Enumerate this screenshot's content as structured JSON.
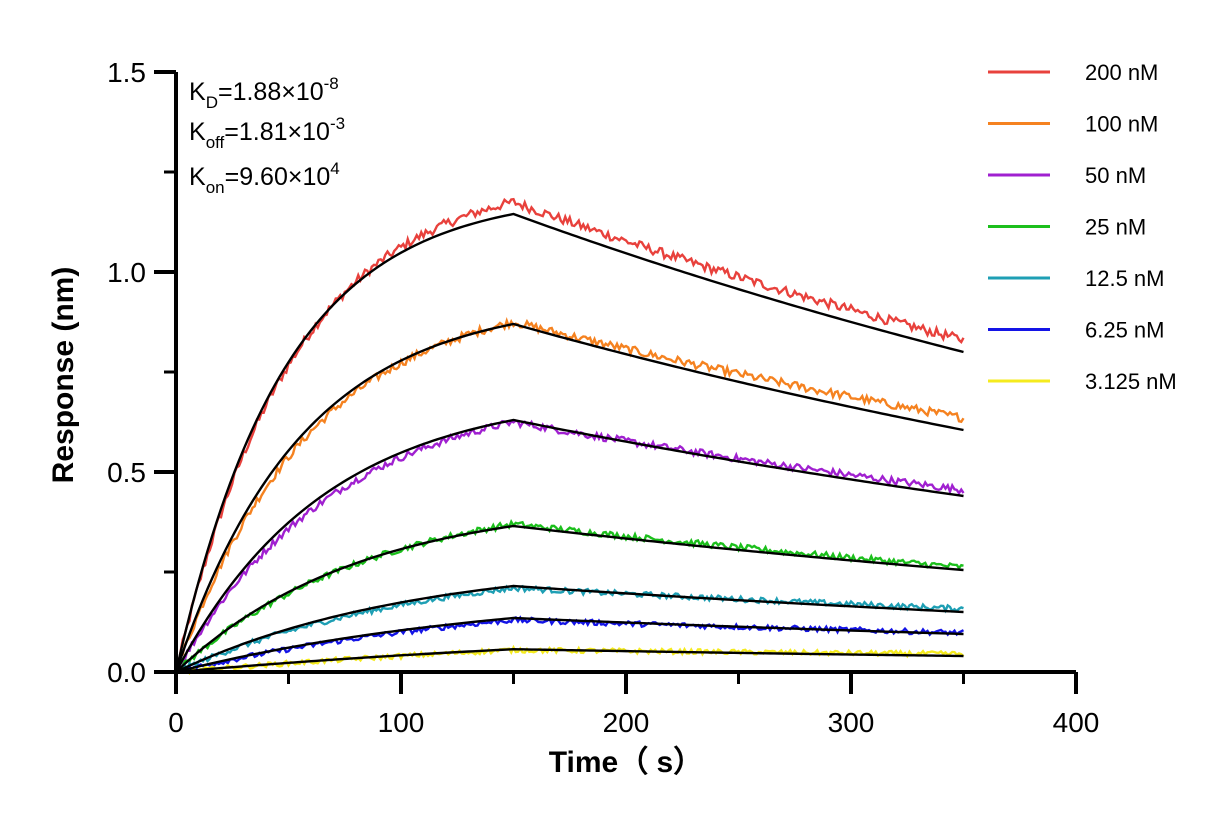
{
  "chart_data": {
    "type": "line",
    "xlabel": "Time（ s）",
    "ylabel": "Response (nm)",
    "xlim": [
      0,
      400
    ],
    "ylim": [
      0,
      1.5
    ],
    "x_ticks": [
      "0",
      "100",
      "200",
      "300",
      "400"
    ],
    "y_ticks": [
      "0.0",
      "0.5",
      "1.0",
      "1.5"
    ],
    "grid": false,
    "legend_position": "top-right",
    "kinetics": {
      "kd": {
        "base": "K",
        "sub": "D",
        "mid": "=1.88×10",
        "sup": "-8"
      },
      "koff": {
        "base": "K",
        "sub": "off",
        "mid": "=1.81×10",
        "sup": "-3"
      },
      "kon": {
        "base": "K",
        "sub": "on",
        "mid": "=9.60×10",
        "sup": "4"
      }
    },
    "association_end": 150,
    "dissociation_end": 350,
    "series": [
      {
        "name": "200 nM",
        "color": "#e8413c",
        "fit_peak": 1.145,
        "fit_end": 0.8,
        "data_peak": 1.175,
        "data_end": 0.83
      },
      {
        "name": "100 nM",
        "color": "#f58220",
        "fit_peak": 0.87,
        "fit_end": 0.605,
        "data_peak": 0.875,
        "data_end": 0.635
      },
      {
        "name": "50 nM",
        "color": "#a020d0",
        "fit_peak": 0.63,
        "fit_end": 0.44,
        "data_peak": 0.625,
        "data_end": 0.455
      },
      {
        "name": "25 nM",
        "color": "#1cbf1c",
        "fit_peak": 0.365,
        "fit_end": 0.255,
        "data_peak": 0.37,
        "data_end": 0.262
      },
      {
        "name": "12.5 nM",
        "color": "#1e9fb4",
        "fit_peak": 0.215,
        "fit_end": 0.15,
        "data_peak": 0.21,
        "data_end": 0.158
      },
      {
        "name": "6.25 nM",
        "color": "#1414e6",
        "fit_peak": 0.135,
        "fit_end": 0.095,
        "data_peak": 0.13,
        "data_end": 0.098
      },
      {
        "name": "3.125 nM",
        "color": "#f5eb1e",
        "fit_peak": 0.057,
        "fit_end": 0.04,
        "data_peak": 0.055,
        "data_end": 0.045
      }
    ]
  }
}
